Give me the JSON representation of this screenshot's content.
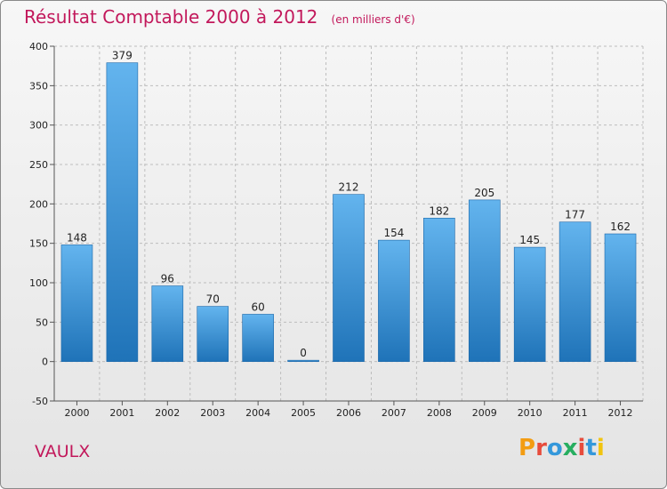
{
  "header": {
    "title": "Résultat Comptable 2000 à 2012",
    "subtitle": "(en milliers d'€)"
  },
  "footer": {
    "city": "VAULX",
    "logo": "Proxiti"
  },
  "colors": {
    "bar_light": "#63b4ee",
    "bar_dark": "#1f73b8",
    "title": "#c2185b",
    "grid": "#bdbdbd"
  },
  "chart_data": {
    "type": "bar",
    "title": "Résultat Comptable 2000 à 2012",
    "subtitle": "(en milliers d'€)",
    "categories": [
      "2000",
      "2001",
      "2002",
      "2003",
      "2004",
      "2005",
      "2006",
      "2007",
      "2008",
      "2009",
      "2010",
      "2011",
      "2012"
    ],
    "values": [
      148,
      379,
      96,
      70,
      60,
      0,
      212,
      154,
      182,
      205,
      145,
      177,
      162
    ],
    "ylim": [
      -50,
      400
    ],
    "yticks": [
      -50,
      0,
      50,
      100,
      150,
      200,
      250,
      300,
      350,
      400
    ],
    "grid": true,
    "xlabel": "",
    "ylabel": ""
  }
}
